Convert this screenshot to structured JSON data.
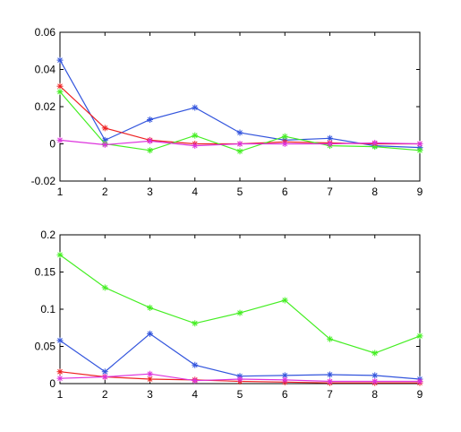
{
  "chart_data": [
    {
      "type": "line",
      "title": "",
      "xlabel": "",
      "ylabel": "",
      "x": [
        1,
        2,
        3,
        4,
        5,
        6,
        7,
        8,
        9
      ],
      "xlim": [
        1,
        9
      ],
      "ylim": [
        -0.02,
        0.06
      ],
      "xticks": [
        "1",
        "2",
        "3",
        "4",
        "5",
        "6",
        "7",
        "8",
        "9"
      ],
      "yticks": [
        -0.02,
        0,
        0.02,
        0.04,
        0.06
      ],
      "ytick_labels": [
        "-0.02",
        "0",
        "0.02",
        "0.04",
        "0.06"
      ],
      "grid": false,
      "marker": "*",
      "series": [
        {
          "color": "#3355dd",
          "values": [
            0.045,
            0.002,
            0.013,
            0.0195,
            0.006,
            0.002,
            0.003,
            -0.001,
            -0.002
          ]
        },
        {
          "color": "#ee2222",
          "values": [
            0.031,
            0.0085,
            0.002,
            0.0,
            0.0,
            0.001,
            0.0005,
            0.0,
            0.0
          ]
        },
        {
          "color": "#44ee22",
          "values": [
            0.028,
            0.0,
            -0.0035,
            0.0045,
            -0.004,
            0.004,
            -0.001,
            -0.0015,
            -0.0035
          ]
        },
        {
          "color": "#dd33dd",
          "values": [
            0.002,
            -0.0005,
            0.0015,
            -0.001,
            0.0,
            0.0,
            0.0,
            0.0005,
            0.0
          ]
        }
      ]
    },
    {
      "type": "line",
      "title": "",
      "xlabel": "",
      "ylabel": "",
      "x": [
        1,
        2,
        3,
        4,
        5,
        6,
        7,
        8,
        9
      ],
      "xlim": [
        1,
        9
      ],
      "ylim": [
        0,
        0.2
      ],
      "xticks": [
        "1",
        "2",
        "3",
        "4",
        "5",
        "6",
        "7",
        "8",
        "9"
      ],
      "yticks": [
        0,
        0.05,
        0.1,
        0.15,
        0.2
      ],
      "ytick_labels": [
        "0",
        "0.05",
        "0.1",
        "0.15",
        "0.2"
      ],
      "grid": false,
      "marker": "*",
      "series": [
        {
          "color": "#44ee22",
          "values": [
            0.173,
            0.129,
            0.102,
            0.081,
            0.095,
            0.112,
            0.06,
            0.041,
            0.064
          ]
        },
        {
          "color": "#3355dd",
          "values": [
            0.058,
            0.016,
            0.067,
            0.025,
            0.01,
            0.011,
            0.012,
            0.011,
            0.006
          ]
        },
        {
          "color": "#ee2222",
          "values": [
            0.016,
            0.009,
            0.006,
            0.005,
            0.003,
            0.002,
            0.001,
            0.001,
            0.001
          ]
        },
        {
          "color": "#dd33dd",
          "values": [
            0.007,
            0.009,
            0.013,
            0.004,
            0.006,
            0.005,
            0.003,
            0.003,
            0.003
          ]
        }
      ]
    }
  ]
}
